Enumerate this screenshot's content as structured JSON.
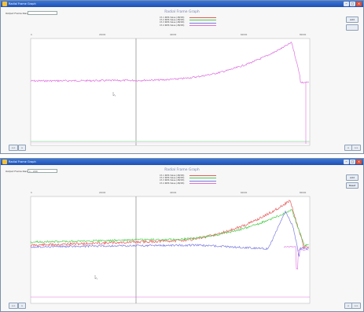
{
  "windows": [
    {
      "title": "Radial Frame Graph",
      "field_label": "Output Frame Range",
      "field_value": "",
      "plot_title": "Radial Frame Graph",
      "legend": [
        {
          "label": "Ch 1 RMS Value (dB/1M)",
          "color": "#e85a5a"
        },
        {
          "label": "Ch 2 RMS Value (dB/1M)",
          "color": "#4fcf4f"
        },
        {
          "label": "Ch 3 RMS Value (dB/1M)",
          "color": "#7d7de0"
        },
        {
          "label": "Ch 4 RMS Value (dB/1M)",
          "color": "#e070e0"
        }
      ],
      "side_buttons": [
        "Add",
        ""
      ],
      "x_ticks": [
        "0",
        "20000",
        "40000",
        "60000",
        "80000"
      ],
      "bottom_left_buttons": [
        "<<",
        ">"
      ],
      "bottom_right_buttons": [
        "<",
        ">>"
      ]
    },
    {
      "title": "Radial Frame Graph",
      "field_label": "Output Frame Range",
      "field_value": "1 - 200",
      "plot_title": "Radial Frame Graph",
      "legend": [
        {
          "label": "Ch 1 RMS Value (dB/1M)",
          "color": "#e85a5a"
        },
        {
          "label": "Ch 2 RMS Value (dB/1M)",
          "color": "#4fcf4f"
        },
        {
          "label": "Ch 3 RMS Value (dB/1M)",
          "color": "#7d7de0"
        },
        {
          "label": "Ch 4 RMS Value (dB/1M)",
          "color": "#e070e0"
        }
      ],
      "side_buttons": [
        "Add",
        "Reset"
      ],
      "x_ticks": [
        "0",
        "20000",
        "40000",
        "60000",
        "80000"
      ],
      "bottom_left_buttons": [
        "<<",
        ">"
      ],
      "bottom_right_buttons": [
        "<",
        ">>"
      ]
    }
  ]
}
